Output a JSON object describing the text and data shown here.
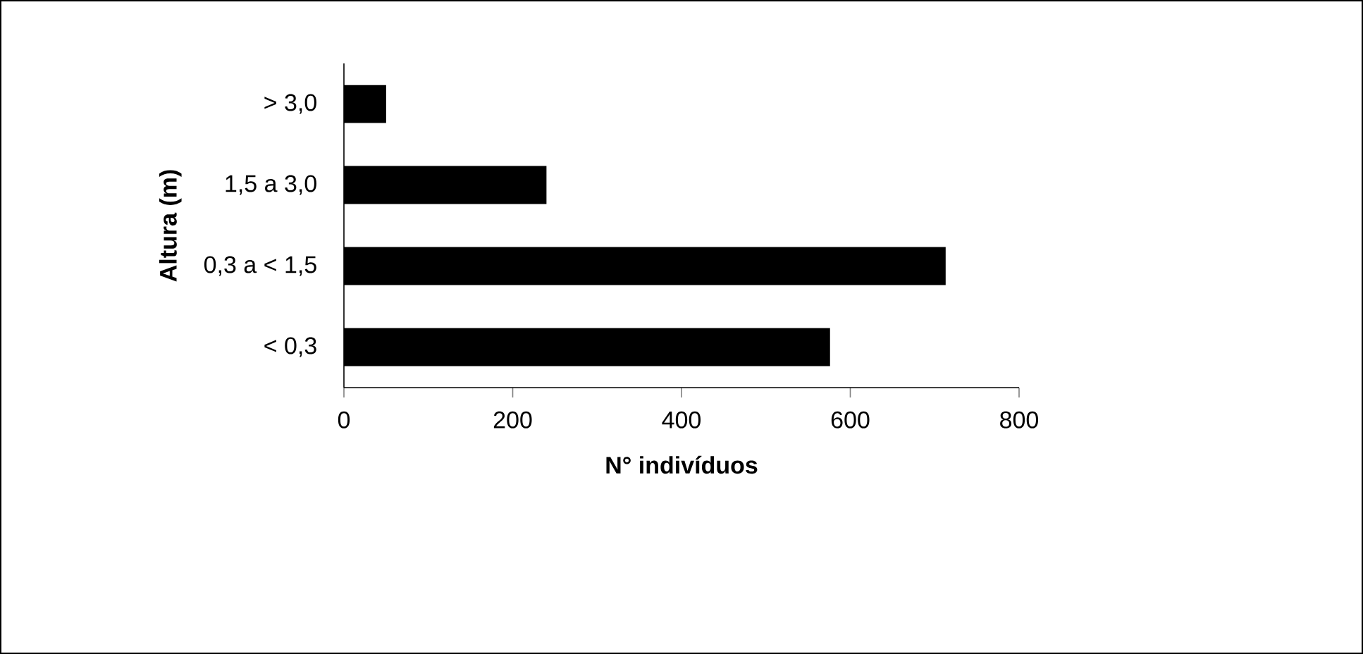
{
  "chart_data": {
    "type": "bar",
    "orientation": "horizontal",
    "categories": [
      "> 3,0",
      "1,5 a 3,0",
      "0,3 a < 1,5",
      "< 0,3"
    ],
    "values": [
      50,
      240,
      713,
      576
    ],
    "color": "#000000",
    "xlim": [
      0,
      800
    ],
    "xticks": [
      0,
      200,
      400,
      600,
      800
    ],
    "xlabel": "N° indivíduos",
    "ylabel": "Altura (m)"
  }
}
